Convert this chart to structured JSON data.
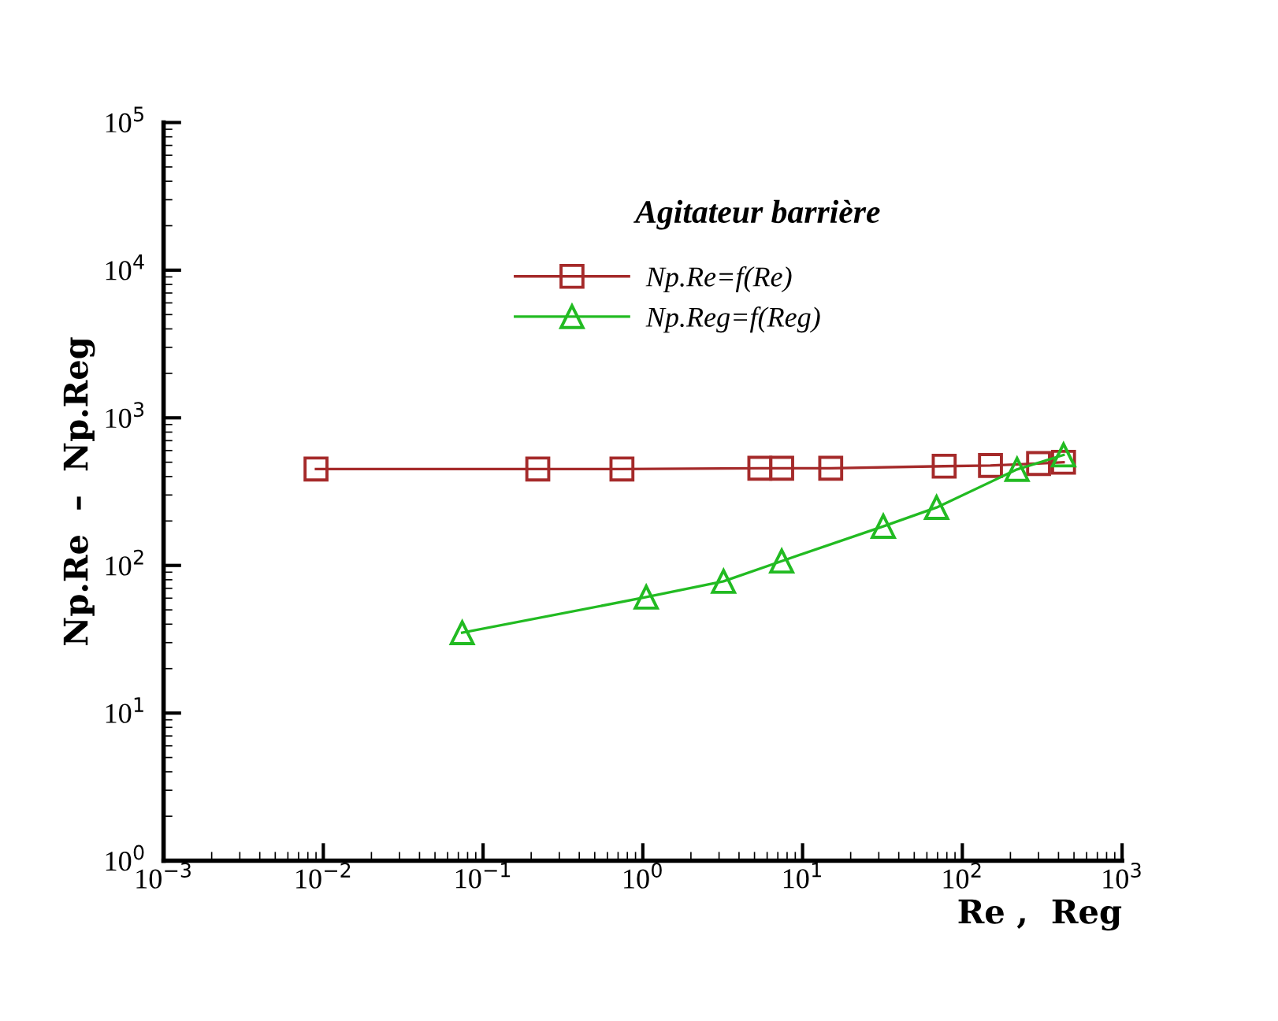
{
  "chart_data": {
    "type": "line",
    "title": "Agitateur barrière",
    "xlabel": "Re ,  Reg",
    "ylabel": "Np.Re  –  Np.Reg",
    "log": "xy",
    "xlim": [
      0.001,
      1000
    ],
    "ylim": [
      1,
      100000
    ],
    "xticks": [
      {
        "value": 0.001,
        "label": "10$^{−3}$"
      },
      {
        "value": 0.01,
        "label": "10$^{−2}$"
      },
      {
        "value": 0.1,
        "label": "10$^{−1}$"
      },
      {
        "value": 1,
        "label": "10$^{0}$"
      },
      {
        "value": 10,
        "label": "10$^{1}$"
      },
      {
        "value": 100,
        "label": "10$^{2}$"
      },
      {
        "value": 1000,
        "label": "10$^{3}$"
      }
    ],
    "yticks": [
      {
        "value": 1,
        "label": "10$^{0}$"
      },
      {
        "value": 10,
        "label": "10$^{1}$"
      },
      {
        "value": 100,
        "label": "10$^{2}$"
      },
      {
        "value": 1000,
        "label": "10$^{3}$"
      },
      {
        "value": 10000,
        "label": "10$^{4}$"
      },
      {
        "value": 100000,
        "label": "10$^{5}$"
      }
    ],
    "grid": false,
    "legend": "top",
    "series": [
      {
        "name": "Np.Re=f(Re)",
        "color": "#a52a2a",
        "marker": "square",
        "x": [
          0.009,
          0.22,
          0.74,
          5.4,
          7.4,
          15,
          77,
          150,
          300,
          430
        ],
        "values": [
          450,
          450,
          450,
          455,
          455,
          455,
          470,
          475,
          490,
          500
        ]
      },
      {
        "name": "Np.Reg=f(Reg)",
        "color": "#22bb22",
        "marker": "triangle",
        "x": [
          0.074,
          1.05,
          3.2,
          7.4,
          32,
          69,
          220,
          430
        ],
        "values": [
          35,
          61,
          78,
          107,
          184,
          247,
          447,
          560
        ]
      }
    ]
  }
}
